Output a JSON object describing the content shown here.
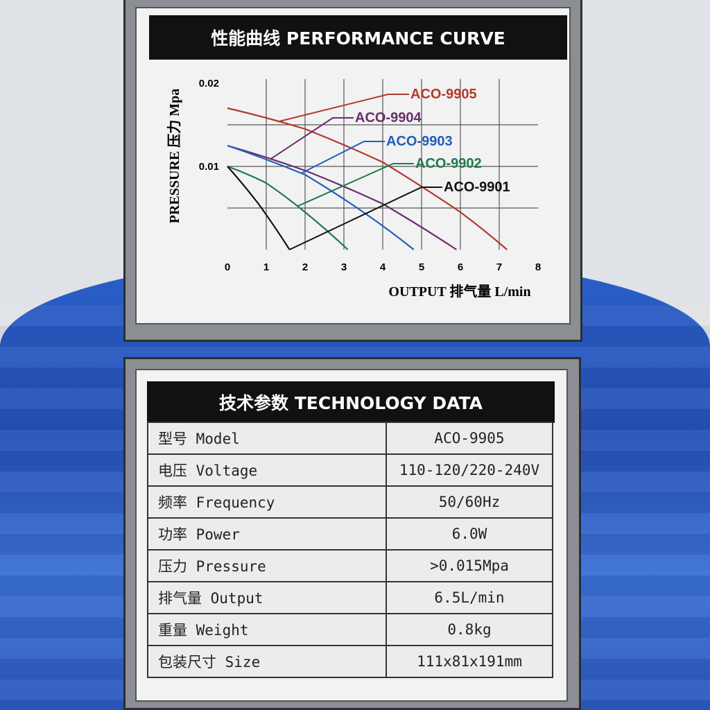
{
  "chart_panel": {
    "title": "性能曲线 PERFORMANCE CURVE"
  },
  "chart_data": {
    "type": "line",
    "title": "性能曲线 PERFORMANCE CURVE",
    "xlabel": "OUTPUT 排气量 L/min",
    "ylabel": "PRESSURE 压力 Mpa",
    "xlim": [
      0,
      8
    ],
    "ylim": [
      0,
      0.02
    ],
    "x_ticks": [
      "0",
      "1",
      "2",
      "3",
      "4",
      "5",
      "6",
      "7",
      "8"
    ],
    "y_ticks": [
      "0.01",
      "0.02"
    ],
    "grid": true,
    "series": [
      {
        "name": "ACO-9905",
        "color": "#b03a2e",
        "points": [
          [
            0,
            0.017
          ],
          [
            2,
            0.0145
          ],
          [
            4,
            0.0105
          ],
          [
            6,
            0.0045
          ],
          [
            7.2,
            0
          ]
        ]
      },
      {
        "name": "ACO-9904",
        "color": "#6a2d6e",
        "points": [
          [
            0,
            0.0125
          ],
          [
            2,
            0.0095
          ],
          [
            4,
            0.0055
          ],
          [
            5.9,
            0
          ]
        ]
      },
      {
        "name": "ACO-9903",
        "color": "#1f5fb8",
        "points": [
          [
            0,
            0.0125
          ],
          [
            2,
            0.009
          ],
          [
            3.5,
            0.0045
          ],
          [
            4.8,
            0
          ]
        ]
      },
      {
        "name": "ACO-9902",
        "color": "#1e7a4f",
        "points": [
          [
            0,
            0.01
          ],
          [
            1,
            0.008
          ],
          [
            2,
            0.0045
          ],
          [
            3.1,
            0
          ]
        ]
      },
      {
        "name": "ACO-9901",
        "color": "#111111",
        "points": [
          [
            0,
            0.01
          ],
          [
            0.8,
            0.0055
          ],
          [
            1.6,
            0
          ]
        ]
      }
    ]
  },
  "table_panel": {
    "title": "技术参数 TECHNOLOGY DATA",
    "rows": [
      {
        "label": "型号 Model",
        "value": "ACO-9905"
      },
      {
        "label": "电压 Voltage",
        "value": "110-120/220-240V"
      },
      {
        "label": "频率 Frequency",
        "value": "50/60Hz"
      },
      {
        "label": "功率 Power",
        "value": "6.0W"
      },
      {
        "label": "压力 Pressure",
        "value": ">0.015Mpa"
      },
      {
        "label": "排气量 Output",
        "value": "6.5L/min"
      },
      {
        "label": "重量 Weight",
        "value": "0.8kg"
      },
      {
        "label": "包装尺寸 Size",
        "value": "111x81x191mm"
      }
    ]
  }
}
